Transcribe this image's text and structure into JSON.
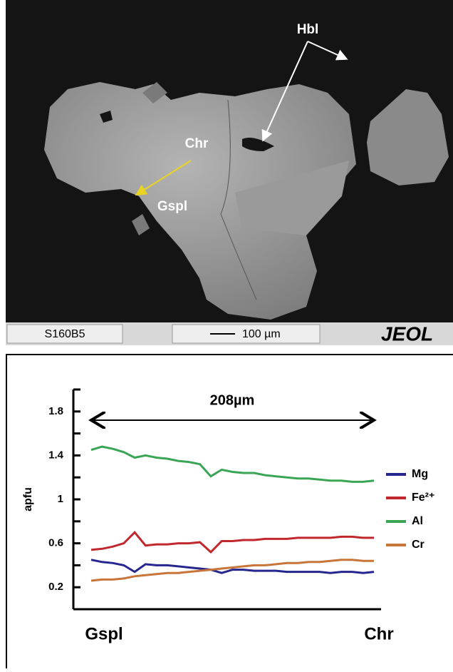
{
  "image_panel": {
    "labels": [
      "Hbl",
      "Chr",
      "Gspl"
    ],
    "sample": "S160B5",
    "scale": "100 µm",
    "brand": "JEOL"
  },
  "chart_data": {
    "type": "line",
    "y_label": "apfu",
    "annotation": "208µm",
    "x_start_label": "Gspl",
    "x_end_label": "Chr",
    "x": [
      0,
      8,
      16,
      24,
      32,
      40,
      48,
      56,
      64,
      72,
      80,
      88,
      96,
      104,
      112,
      120,
      128,
      136,
      144,
      152,
      160,
      168,
      176,
      184,
      192,
      200,
      208
    ],
    "xlim": [
      0,
      208
    ],
    "ylim": [
      0,
      2
    ],
    "yticks": [
      0.2,
      0.6,
      1,
      1.4,
      1.8
    ],
    "yminorticks": [
      0.4,
      0.8,
      1.2,
      1.6,
      2
    ],
    "series": [
      {
        "name": "Mg",
        "color": "#26268f",
        "values": [
          0.45,
          0.43,
          0.42,
          0.4,
          0.34,
          0.41,
          0.4,
          0.4,
          0.39,
          0.38,
          0.37,
          0.36,
          0.33,
          0.36,
          0.36,
          0.35,
          0.35,
          0.35,
          0.34,
          0.34,
          0.34,
          0.34,
          0.33,
          0.34,
          0.34,
          0.33,
          0.34
        ]
      },
      {
        "name": "Fe²⁺",
        "color": "#c0282d",
        "values": [
          0.54,
          0.55,
          0.57,
          0.6,
          0.7,
          0.58,
          0.59,
          0.59,
          0.6,
          0.6,
          0.61,
          0.52,
          0.62,
          0.62,
          0.63,
          0.63,
          0.64,
          0.64,
          0.64,
          0.65,
          0.65,
          0.65,
          0.65,
          0.66,
          0.66,
          0.65,
          0.65
        ]
      },
      {
        "name": "Al",
        "color": "#3aa655",
        "values": [
          1.45,
          1.48,
          1.46,
          1.43,
          1.38,
          1.4,
          1.38,
          1.37,
          1.35,
          1.34,
          1.32,
          1.21,
          1.27,
          1.25,
          1.24,
          1.24,
          1.22,
          1.21,
          1.2,
          1.19,
          1.19,
          1.18,
          1.17,
          1.17,
          1.16,
          1.16,
          1.17
        ]
      },
      {
        "name": "Cr",
        "color": "#c8753a",
        "values": [
          0.26,
          0.27,
          0.27,
          0.28,
          0.3,
          0.31,
          0.32,
          0.33,
          0.33,
          0.34,
          0.35,
          0.36,
          0.37,
          0.38,
          0.39,
          0.4,
          0.4,
          0.41,
          0.42,
          0.42,
          0.43,
          0.43,
          0.44,
          0.45,
          0.45,
          0.44,
          0.44
        ]
      }
    ]
  }
}
